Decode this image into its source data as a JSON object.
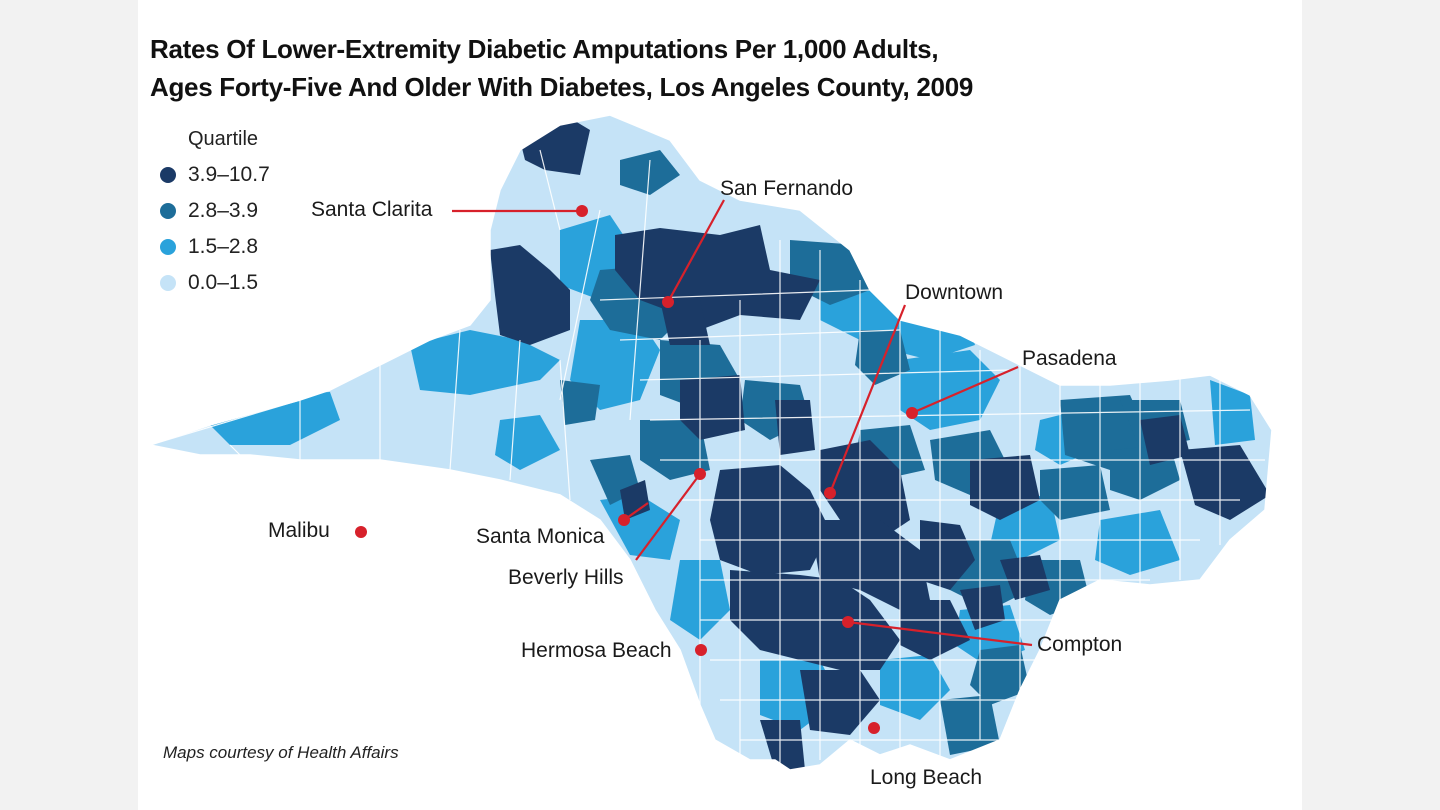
{
  "title": {
    "line1": "Rates Of Lower-Extremity Diabetic Amputations Per 1,000 Adults,",
    "line2": "Ages Forty-Five And Older With Diabetes, Los Angeles County, 2009"
  },
  "legend": {
    "title": "Quartile",
    "items": [
      {
        "label": "3.9–10.7",
        "color": "#1b3a66"
      },
      {
        "label": "2.8–3.9",
        "color": "#1d6d99"
      },
      {
        "label": "1.5–2.8",
        "color": "#2aa2db"
      },
      {
        "label": "0.0–1.5",
        "color": "#c5e3f7"
      }
    ]
  },
  "places": [
    {
      "name": "Santa Clarita"
    },
    {
      "name": "San Fernando"
    },
    {
      "name": "Downtown"
    },
    {
      "name": "Pasadena"
    },
    {
      "name": "Malibu"
    },
    {
      "name": "Santa Monica"
    },
    {
      "name": "Beverly Hills"
    },
    {
      "name": "Hermosa Beach"
    },
    {
      "name": "Compton"
    },
    {
      "name": "Long Beach"
    }
  ],
  "marker_color": "#d7212b",
  "credit": "Maps courtesy of Health Affairs"
}
